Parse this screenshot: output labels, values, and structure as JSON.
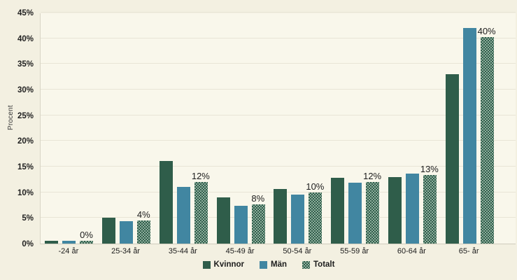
{
  "chart_data": {
    "type": "bar",
    "ylabel": "Procent",
    "categories": [
      "-24 år",
      "25-34 år",
      "35-44 år",
      "45-49 år",
      "50-54 år",
      "55-59 år",
      "60-64 år",
      "65- år"
    ],
    "series": [
      {
        "name": "Kvinnor",
        "color": "#2f5d4a",
        "pattern": false,
        "values": [
          0.5,
          5.1,
          16.1,
          9.0,
          10.7,
          12.8,
          12.9,
          33.0
        ]
      },
      {
        "name": "Män",
        "color": "#4186a1",
        "pattern": false,
        "values": [
          0.5,
          4.4,
          11.0,
          7.3,
          9.6,
          11.9,
          13.6,
          42.0
        ]
      },
      {
        "name": "Totalt",
        "color": "#2f5d4a",
        "pattern": true,
        "pattern_color": "#8fae9d",
        "values": [
          0.5,
          4.5,
          12.0,
          7.7,
          9.9,
          12.0,
          13.4,
          40.2
        ]
      }
    ],
    "bar_labels": [
      "0%",
      "4%",
      "12%",
      "8%",
      "10%",
      "12%",
      "13%",
      "40%"
    ],
    "y_ticks": [
      0,
      5,
      10,
      15,
      20,
      25,
      30,
      35,
      40,
      45
    ],
    "y_tick_suffix": "%",
    "ylim": [
      0,
      45
    ],
    "grid": true,
    "legend_position": "bottom",
    "colors": {
      "background": "#f3f0e1",
      "plot_background": "#f9f7eb",
      "gridline": "#e8e5d6",
      "text": "#1c1c1c"
    }
  }
}
